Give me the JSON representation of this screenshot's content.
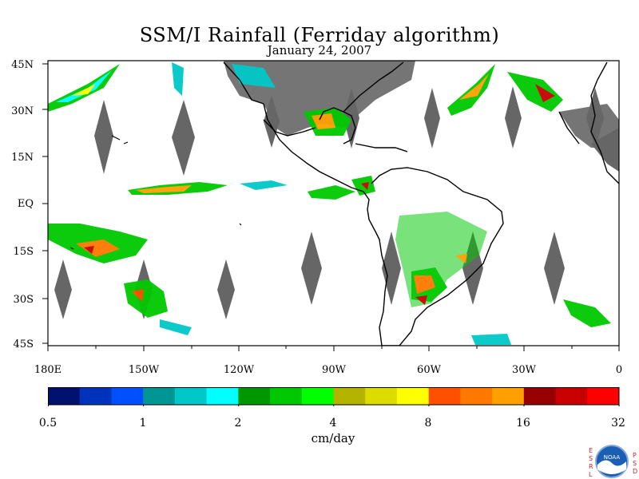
{
  "title": "SSM/I Rainfall (Ferriday algorithm)",
  "date": "January 24, 2007",
  "map": {
    "lat_labels": [
      "45N",
      "30N",
      "15N",
      "EQ",
      "15S",
      "30S",
      "45S"
    ],
    "lon_labels": [
      "180E",
      "150W",
      "120W",
      "90W",
      "60W",
      "30W",
      "0"
    ],
    "lat_range": [
      -45,
      45
    ],
    "lon_range": [
      -180,
      0
    ],
    "land_color": "#666666",
    "coast_color": "#000000"
  },
  "colorbar": {
    "units": "cm/day",
    "tick_labels": [
      "0.5",
      "1",
      "2",
      "4",
      "8",
      "16",
      "32"
    ],
    "colors": [
      "#00116e",
      "#0033bb",
      "#0050ff",
      "#009696",
      "#00c8c8",
      "#00ffff",
      "#009600",
      "#00c800",
      "#00ff00",
      "#b4b400",
      "#dcdc00",
      "#ffff00",
      "#ff5000",
      "#ff7800",
      "#ffa000",
      "#960000",
      "#c80000",
      "#ff0000"
    ]
  },
  "logo": {
    "left_letters": [
      "E",
      "S",
      "R",
      "L"
    ],
    "right_letters": [
      "P",
      "S",
      "D"
    ],
    "center": "NOAA"
  }
}
